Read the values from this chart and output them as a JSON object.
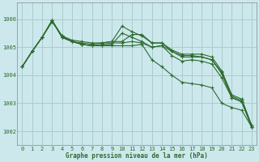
{
  "title": "Graphe pression niveau de la mer (hPa)",
  "background_color": "#cce8ed",
  "grid_color": "#aacccc",
  "line_color": "#2d6a2d",
  "xlim": [
    -0.5,
    23.5
  ],
  "ylim": [
    1001.5,
    1006.6
  ],
  "yticks": [
    1002,
    1003,
    1004,
    1005,
    1006
  ],
  "xticks": [
    0,
    1,
    2,
    3,
    4,
    5,
    6,
    7,
    8,
    9,
    10,
    11,
    12,
    13,
    14,
    15,
    16,
    17,
    18,
    19,
    20,
    21,
    22,
    23
  ],
  "series": [
    [
      1004.3,
      1004.85,
      1005.35,
      1005.95,
      1005.4,
      1005.25,
      1005.2,
      1005.15,
      1005.15,
      1005.2,
      1005.2,
      1005.45,
      1005.45,
      1005.15,
      1005.15,
      1004.9,
      1004.75,
      1004.75,
      1004.75,
      1004.65,
      1004.15,
      1003.3,
      1003.15,
      1002.2
    ],
    [
      1004.3,
      1004.85,
      1005.35,
      1005.9,
      1005.4,
      1005.2,
      1005.15,
      1005.1,
      1005.15,
      1005.2,
      1005.75,
      1005.55,
      1005.4,
      1005.15,
      1005.15,
      1004.85,
      1004.7,
      1004.7,
      1004.65,
      1004.55,
      1004.1,
      1003.25,
      1003.1,
      1002.2
    ],
    [
      1004.3,
      1004.85,
      1005.35,
      1005.95,
      1005.35,
      1005.2,
      1005.1,
      1005.05,
      1005.1,
      1005.15,
      1005.15,
      1005.2,
      1005.15,
      1005.0,
      1005.05,
      1004.85,
      1004.65,
      1004.65,
      1004.65,
      1004.55,
      1004.05,
      1003.2,
      1003.05,
      1002.15
    ],
    [
      1004.3,
      1004.85,
      1005.35,
      1005.95,
      1005.35,
      1005.2,
      1005.1,
      1005.05,
      1005.05,
      1005.1,
      1005.5,
      1005.35,
      1005.2,
      1005.0,
      1005.05,
      1004.7,
      1004.5,
      1004.55,
      1004.5,
      1004.4,
      1003.9,
      1003.2,
      1003.05,
      1002.15
    ],
    [
      1004.3,
      1004.85,
      1005.35,
      1005.95,
      1005.35,
      1005.2,
      1005.1,
      1005.05,
      1005.05,
      1005.05,
      1005.05,
      1005.05,
      1005.1,
      1004.55,
      1004.3,
      1004.0,
      1003.75,
      1003.7,
      1003.65,
      1003.55,
      1003.0,
      1002.85,
      1002.75,
      1002.15
    ]
  ]
}
